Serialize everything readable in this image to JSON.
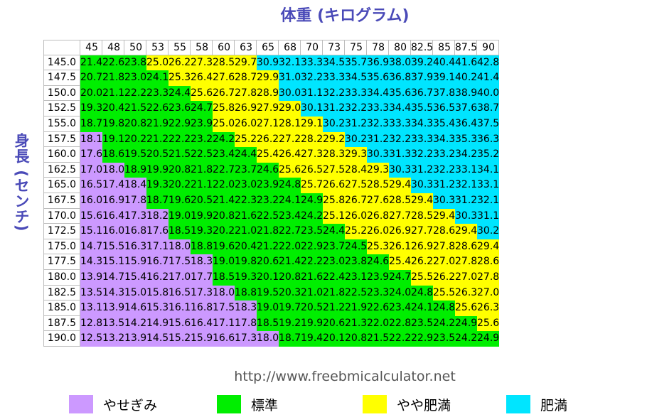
{
  "chart_data": {
    "type": "heatmap",
    "title": "体重 (キログラム)",
    "xlabel": "体重 (キログラム)",
    "ylabel": "身長 (センチ)",
    "x": [
      "45",
      "48",
      "50",
      "53",
      "55",
      "58",
      "60",
      "63",
      "65",
      "68",
      "70",
      "73",
      "75",
      "78",
      "80",
      "82.5",
      "85",
      "87.5",
      "90"
    ],
    "y": [
      "145.0",
      "147.5",
      "150.0",
      "152.5",
      "155.0",
      "157.5",
      "160.0",
      "162.5",
      "165.0",
      "167.5",
      "170.0",
      "172.5",
      "175.0",
      "177.5",
      "180.0",
      "182.5",
      "185.0",
      "187.5",
      "190.0"
    ],
    "values": [
      [
        "21.4",
        "22.6",
        "23.8",
        "25.0",
        "26.2",
        "27.3",
        "28.5",
        "29.7",
        "30.9",
        "32.1",
        "33.3",
        "34.5",
        "35.7",
        "36.9",
        "38.0",
        "39.2",
        "40.4",
        "41.6",
        "42.8"
      ],
      [
        "20.7",
        "21.8",
        "23.0",
        "24.1",
        "25.3",
        "26.4",
        "27.6",
        "28.7",
        "29.9",
        "31.0",
        "32.2",
        "33.3",
        "34.5",
        "35.6",
        "36.8",
        "37.9",
        "39.1",
        "40.2",
        "41.4"
      ],
      [
        "20.0",
        "21.1",
        "22.2",
        "23.3",
        "24.4",
        "25.6",
        "26.7",
        "27.8",
        "28.9",
        "30.0",
        "31.1",
        "32.2",
        "33.3",
        "34.4",
        "35.6",
        "36.7",
        "37.8",
        "38.9",
        "40.0"
      ],
      [
        "19.3",
        "20.4",
        "21.5",
        "22.6",
        "23.6",
        "24.7",
        "25.8",
        "26.9",
        "27.9",
        "29.0",
        "30.1",
        "31.2",
        "32.2",
        "33.3",
        "34.4",
        "35.5",
        "36.5",
        "37.6",
        "38.7"
      ],
      [
        "18.7",
        "19.8",
        "20.8",
        "21.9",
        "22.9",
        "23.9",
        "25.0",
        "26.0",
        "27.1",
        "28.1",
        "29.1",
        "30.2",
        "31.2",
        "32.3",
        "33.3",
        "34.3",
        "35.4",
        "36.4",
        "37.5"
      ],
      [
        "18.1",
        "19.1",
        "20.2",
        "21.2",
        "22.2",
        "23.2",
        "24.2",
        "25.2",
        "26.2",
        "27.2",
        "28.2",
        "29.2",
        "30.2",
        "31.2",
        "32.2",
        "33.3",
        "34.3",
        "35.3",
        "36.3"
      ],
      [
        "17.6",
        "18.6",
        "19.5",
        "20.5",
        "21.5",
        "22.5",
        "23.4",
        "24.4",
        "25.4",
        "26.4",
        "27.3",
        "28.3",
        "29.3",
        "30.3",
        "31.3",
        "32.2",
        "33.2",
        "34.2",
        "35.2"
      ],
      [
        "17.0",
        "18.0",
        "18.9",
        "19.9",
        "20.8",
        "21.8",
        "22.7",
        "23.7",
        "24.6",
        "25.6",
        "26.5",
        "27.5",
        "28.4",
        "29.3",
        "30.3",
        "31.2",
        "32.2",
        "33.1",
        "34.1"
      ],
      [
        "16.5",
        "17.4",
        "18.4",
        "19.3",
        "20.2",
        "21.1",
        "22.0",
        "23.0",
        "23.9",
        "24.8",
        "25.7",
        "26.6",
        "27.5",
        "28.5",
        "29.4",
        "30.3",
        "31.2",
        "32.1",
        "33.1"
      ],
      [
        "16.0",
        "16.9",
        "17.8",
        "18.7",
        "19.6",
        "20.5",
        "21.4",
        "22.3",
        "23.2",
        "24.1",
        "24.9",
        "25.8",
        "26.7",
        "27.6",
        "28.5",
        "29.4",
        "30.3",
        "31.2",
        "32.1"
      ],
      [
        "15.6",
        "16.4",
        "17.3",
        "18.2",
        "19.0",
        "19.9",
        "20.8",
        "21.6",
        "22.5",
        "23.4",
        "24.2",
        "25.1",
        "26.0",
        "26.8",
        "27.7",
        "28.5",
        "29.4",
        "30.3",
        "31.1"
      ],
      [
        "15.1",
        "16.0",
        "16.8",
        "17.6",
        "18.5",
        "19.3",
        "20.2",
        "21.0",
        "21.8",
        "22.7",
        "23.5",
        "24.4",
        "25.2",
        "26.0",
        "26.9",
        "27.7",
        "28.6",
        "29.4",
        "30.2"
      ],
      [
        "14.7",
        "15.5",
        "16.3",
        "17.1",
        "18.0",
        "18.8",
        "19.6",
        "20.4",
        "21.2",
        "22.0",
        "22.9",
        "23.7",
        "24.5",
        "25.3",
        "26.1",
        "26.9",
        "27.8",
        "28.6",
        "29.4"
      ],
      [
        "14.3",
        "15.1",
        "15.9",
        "16.7",
        "17.5",
        "18.3",
        "19.0",
        "19.8",
        "20.6",
        "21.4",
        "22.2",
        "23.0",
        "23.8",
        "24.6",
        "25.4",
        "26.2",
        "27.0",
        "27.8",
        "28.6"
      ],
      [
        "13.9",
        "14.7",
        "15.4",
        "16.2",
        "17.0",
        "17.7",
        "18.5",
        "19.3",
        "20.1",
        "20.8",
        "21.6",
        "22.4",
        "23.1",
        "23.9",
        "24.7",
        "25.5",
        "26.2",
        "27.0",
        "27.8"
      ],
      [
        "13.5",
        "14.3",
        "15.0",
        "15.8",
        "16.5",
        "17.3",
        "18.0",
        "18.8",
        "19.5",
        "20.3",
        "21.0",
        "21.8",
        "22.5",
        "23.3",
        "24.0",
        "24.8",
        "25.5",
        "26.3",
        "27.0"
      ],
      [
        "13.1",
        "13.9",
        "14.6",
        "15.3",
        "16.1",
        "16.8",
        "17.5",
        "18.3",
        "19.0",
        "19.7",
        "20.5",
        "21.2",
        "21.9",
        "22.6",
        "23.4",
        "24.1",
        "24.8",
        "25.6",
        "26.3"
      ],
      [
        "12.8",
        "13.5",
        "14.2",
        "14.9",
        "15.6",
        "16.4",
        "17.1",
        "17.8",
        "18.5",
        "19.2",
        "19.9",
        "20.6",
        "21.3",
        "22.0",
        "22.8",
        "23.5",
        "24.2",
        "24.9",
        "25.6"
      ],
      [
        "12.5",
        "13.2",
        "13.9",
        "14.5",
        "15.2",
        "15.9",
        "16.6",
        "17.3",
        "18.0",
        "18.7",
        "19.4",
        "20.1",
        "20.8",
        "21.5",
        "22.2",
        "22.9",
        "23.5",
        "24.2",
        "24.9"
      ]
    ],
    "categories": [
      {
        "name": "やせぎみ",
        "color": "#cc99ff",
        "min": 0,
        "max": 18.5
      },
      {
        "name": "標準",
        "color": "#00ee00",
        "min": 18.5,
        "max": 25
      },
      {
        "name": "やや肥満",
        "color": "#ffff00",
        "min": 25,
        "max": 30
      },
      {
        "name": "肥満",
        "color": "#00e5ff",
        "min": 30,
        "max": 100
      }
    ],
    "legend_position": "bottom"
  },
  "url": "http://www.freebmicalculator.net"
}
